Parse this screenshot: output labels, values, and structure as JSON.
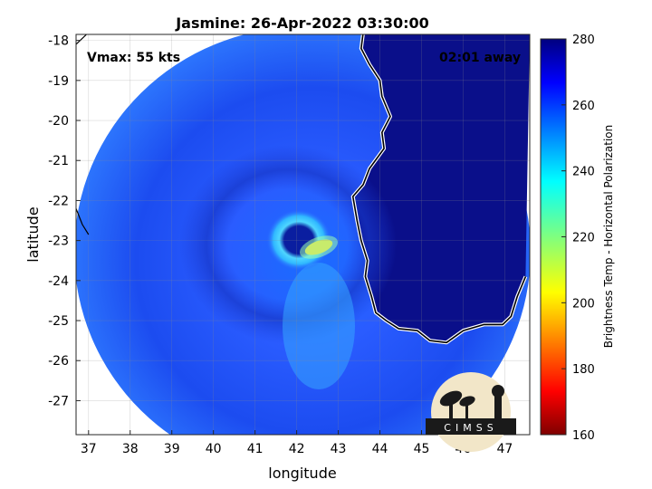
{
  "chart_data": {
    "type": "heatmap",
    "title": "Jasmine: 26-Apr-2022 03:30:00",
    "xlabel": "longitude",
    "ylabel": "latitude",
    "xlim": [
      36.7,
      47.6
    ],
    "ylim": [
      -27.85,
      -17.85
    ],
    "xticks": [
      37,
      38,
      39,
      40,
      41,
      42,
      43,
      44,
      45,
      46,
      47
    ],
    "yticks": [
      -18,
      -19,
      -20,
      -21,
      -22,
      -23,
      -24,
      -25,
      -26,
      -27
    ],
    "grid": true,
    "annotation_left": "Vmax: 55 kts",
    "annotation_right": "02:01 away",
    "colorbar": {
      "label": "Brightness Temp - Horizontal Polarization",
      "range": [
        160,
        280
      ],
      "ticks": [
        280,
        260,
        240,
        220,
        200,
        180,
        160
      ],
      "colormap": "jet"
    },
    "swath_center": [
      42.2,
      -22.7
    ],
    "storm_center": [
      41.9,
      -22.9
    ],
    "coastline": [
      [
        43.6,
        -17.8
      ],
      [
        43.55,
        -18.2
      ],
      [
        43.75,
        -18.6
      ],
      [
        44.0,
        -19.0
      ],
      [
        44.05,
        -19.4
      ],
      [
        44.25,
        -19.9
      ],
      [
        44.05,
        -20.3
      ],
      [
        44.1,
        -20.7
      ],
      [
        43.75,
        -21.2
      ],
      [
        43.6,
        -21.6
      ],
      [
        43.35,
        -21.9
      ],
      [
        43.45,
        -22.5
      ],
      [
        43.55,
        -23.0
      ],
      [
        43.7,
        -23.5
      ],
      [
        43.65,
        -23.9
      ],
      [
        43.8,
        -24.4
      ],
      [
        43.9,
        -24.8
      ],
      [
        44.15,
        -25.0
      ],
      [
        44.45,
        -25.2
      ],
      [
        44.9,
        -25.25
      ],
      [
        45.2,
        -25.5
      ],
      [
        45.6,
        -25.55
      ],
      [
        46.0,
        -25.25
      ],
      [
        46.5,
        -25.1
      ],
      [
        46.95,
        -25.1
      ],
      [
        47.15,
        -24.9
      ],
      [
        47.3,
        -24.4
      ],
      [
        47.5,
        -23.9
      ]
    ],
    "coastline_sw": [
      [
        36.7,
        -22.2
      ],
      [
        36.85,
        -22.6
      ],
      [
        37.0,
        -22.85
      ]
    ],
    "coastline_nw": [
      [
        36.7,
        -18.1
      ],
      [
        36.95,
        -17.85
      ]
    ]
  },
  "logo": {
    "text": "CIMSS"
  }
}
